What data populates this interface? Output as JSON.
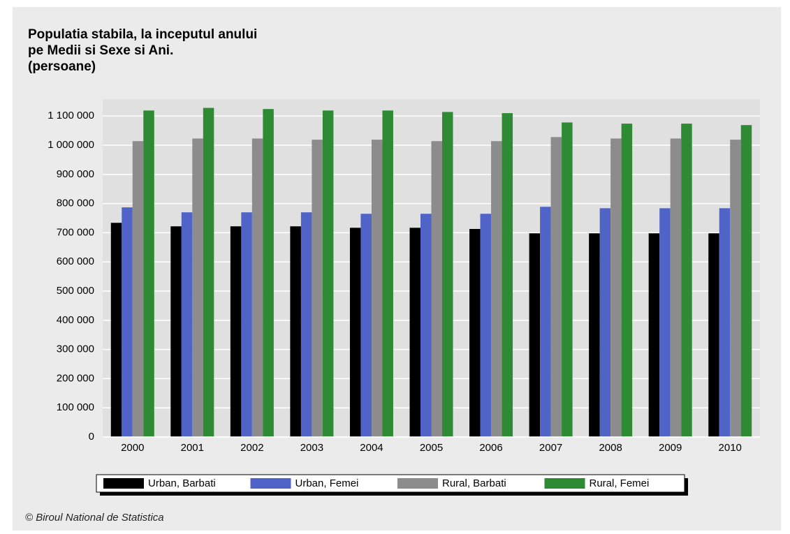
{
  "chart_data": {
    "type": "bar",
    "title": [
      "Populatia stabila, la inceputul anului",
      "pe Medii si Sexe si Ani.",
      "(persoane)"
    ],
    "categories": [
      "2000",
      "2001",
      "2002",
      "2003",
      "2004",
      "2005",
      "2006",
      "2007",
      "2008",
      "2009",
      "2010"
    ],
    "series": [
      {
        "name": "Urban, Barbati",
        "color": "#000000",
        "values": [
          734000,
          722000,
          722000,
          722000,
          717000,
          717000,
          713000,
          698000,
          698000,
          698000,
          698000
        ]
      },
      {
        "name": "Urban, Femei",
        "color": "#5064c8",
        "values": [
          787000,
          770000,
          770000,
          770000,
          765000,
          765000,
          765000,
          789000,
          784000,
          784000,
          784000
        ]
      },
      {
        "name": "Rural, Barbati",
        "color": "#8c8c8c",
        "values": [
          1014000,
          1023000,
          1023000,
          1019000,
          1019000,
          1014000,
          1014000,
          1028000,
          1023000,
          1023000,
          1019000
        ]
      },
      {
        "name": "Rural, Femei",
        "color": "#2e8b34",
        "values": [
          1119000,
          1128000,
          1124000,
          1119000,
          1119000,
          1114000,
          1110000,
          1078000,
          1074000,
          1074000,
          1069000
        ]
      }
    ],
    "ylim": [
      0,
      1158000
    ],
    "yticks": [
      0,
      {
        "value": 100000,
        "label": "100 000"
      },
      {
        "value": 200000,
        "label": "200 000"
      },
      {
        "value": 300000,
        "label": "300 000"
      },
      {
        "value": 400000,
        "label": "400 000"
      },
      {
        "value": 500000,
        "label": "500 000"
      },
      {
        "value": 600000,
        "label": "600 000"
      },
      {
        "value": 700000,
        "label": "700 000"
      },
      {
        "value": 800000,
        "label": "800 000"
      },
      {
        "value": 900000,
        "label": "900 000"
      },
      {
        "value": 1000000,
        "label": "1 000 000"
      },
      {
        "value": 1100000,
        "label": "1 100 000"
      }
    ],
    "grid": true,
    "legend": "bottom",
    "source": "© Biroul National de Statistica"
  }
}
